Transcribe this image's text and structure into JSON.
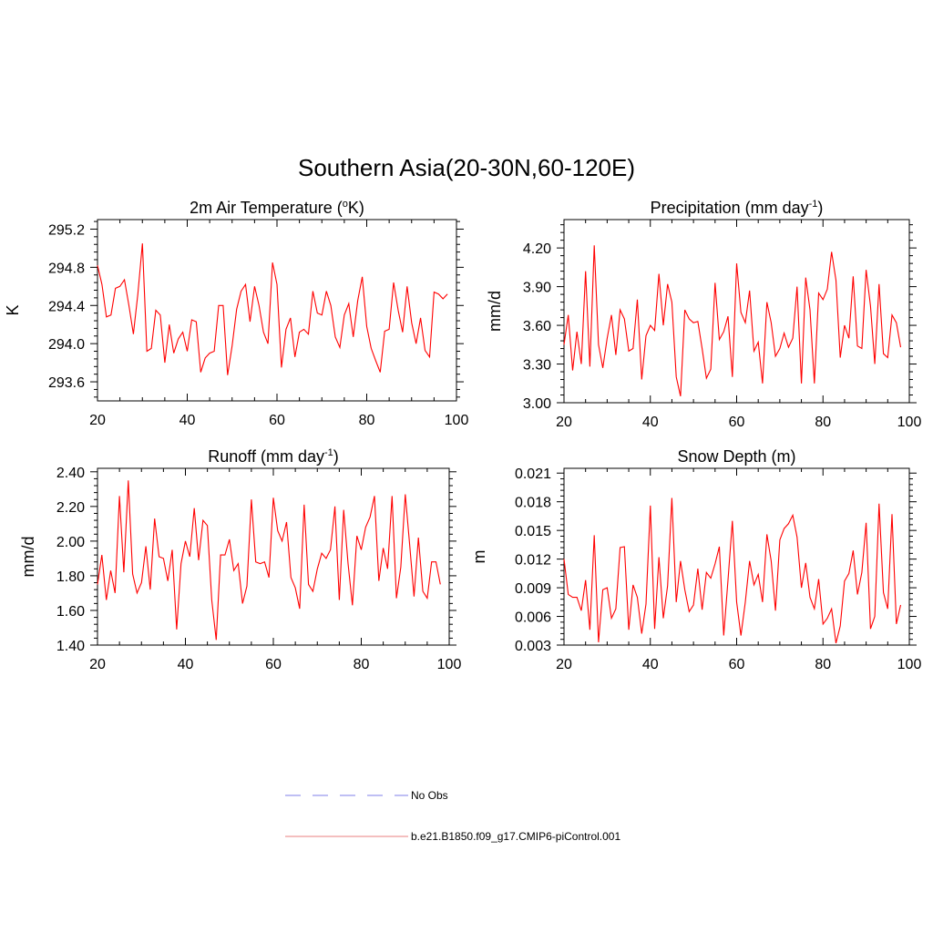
{
  "figure": {
    "title": "Southern Asia(20-30N,60-120E)"
  },
  "legend": {
    "entries": [
      {
        "label": "No Obs",
        "color": "#9999ee",
        "style": "dashed"
      },
      {
        "label": "b.e21.B1850.f09_g17.CMIP6-piControl.001",
        "color": "#ee9999",
        "style": "solid"
      }
    ]
  },
  "chart_data": [
    {
      "type": "line",
      "id": "temp",
      "title": "2m Air Temperature (",
      "title_sup": "o",
      "title_after": "K)",
      "ylabel": "K",
      "xlim": [
        20,
        100
      ],
      "ylim": [
        293.4,
        295.3
      ],
      "xticks": [
        "20",
        "40",
        "60",
        "80",
        "100"
      ],
      "yticks": [
        "293.6",
        "294.0",
        "294.4",
        "294.8",
        "295.2"
      ],
      "line_color": "#ff0000",
      "x": [
        20,
        21,
        22,
        23,
        24,
        25,
        26,
        27,
        28,
        29,
        30,
        31,
        32,
        33,
        34,
        35,
        36,
        37,
        38,
        39,
        40,
        41,
        42,
        43,
        44,
        45,
        46,
        47,
        48,
        49,
        50,
        51,
        52,
        53,
        54,
        55,
        56,
        57,
        58,
        59,
        60,
        61,
        62,
        63,
        64,
        65,
        66,
        67,
        68,
        69,
        70,
        71,
        72,
        73,
        74,
        75,
        76,
        77,
        78,
        79,
        80,
        81,
        82,
        83,
        84,
        85,
        86,
        87,
        88,
        89,
        90,
        91,
        92,
        93,
        94,
        95,
        96,
        97,
        98
      ],
      "values": [
        294.82,
        294.62,
        294.28,
        294.3,
        294.58,
        294.6,
        294.67,
        294.4,
        294.1,
        294.52,
        295.05,
        293.92,
        293.95,
        294.35,
        294.3,
        293.8,
        294.2,
        293.9,
        294.05,
        294.12,
        293.92,
        294.25,
        294.23,
        293.7,
        293.85,
        293.9,
        293.92,
        294.4,
        294.4,
        293.67,
        293.98,
        294.36,
        294.55,
        294.62,
        294.23,
        294.6,
        294.4,
        294.12,
        294.0,
        294.85,
        294.62,
        293.75,
        294.15,
        294.27,
        293.86,
        294.12,
        294.15,
        294.1,
        294.55,
        294.32,
        294.3,
        294.55,
        294.4,
        294.07,
        293.96,
        294.3,
        294.42,
        294.07,
        294.45,
        294.7,
        294.18,
        293.95,
        293.82,
        293.7,
        294.13,
        294.15,
        294.64,
        294.35,
        294.12,
        294.6,
        294.22,
        294.0,
        294.27,
        293.93,
        293.86,
        294.54,
        294.52,
        294.47,
        294.52
      ]
    },
    {
      "type": "line",
      "id": "precip",
      "title": "Precipitation (mm day",
      "title_sup": "-1",
      "title_after": ")",
      "ylabel": "mm/d",
      "xlim": [
        20,
        100
      ],
      "ylim": [
        3.0,
        4.42
      ],
      "xticks": [
        "20",
        "40",
        "60",
        "80",
        "100"
      ],
      "yticks": [
        "3.00",
        "3.30",
        "3.60",
        "3.90",
        "4.20"
      ],
      "line_color": "#ff0000",
      "x": [
        20,
        21,
        22,
        23,
        24,
        25,
        26,
        27,
        28,
        29,
        30,
        31,
        32,
        33,
        34,
        35,
        36,
        37,
        38,
        39,
        40,
        41,
        42,
        43,
        44,
        45,
        46,
        47,
        48,
        49,
        50,
        51,
        52,
        53,
        54,
        55,
        56,
        57,
        58,
        59,
        60,
        61,
        62,
        63,
        64,
        65,
        66,
        67,
        68,
        69,
        70,
        71,
        72,
        73,
        74,
        75,
        76,
        77,
        78,
        79,
        80,
        81,
        82,
        83,
        84,
        85,
        86,
        87,
        88,
        89,
        90,
        91,
        92,
        93,
        94,
        95,
        96,
        97,
        98
      ],
      "values": [
        3.45,
        3.68,
        3.25,
        3.55,
        3.3,
        4.02,
        3.28,
        4.22,
        3.45,
        3.27,
        3.5,
        3.68,
        3.37,
        3.72,
        3.65,
        3.4,
        3.42,
        3.8,
        3.18,
        3.52,
        3.6,
        3.56,
        4.0,
        3.6,
        3.92,
        3.78,
        3.2,
        3.05,
        3.72,
        3.65,
        3.62,
        3.63,
        3.42,
        3.19,
        3.26,
        3.93,
        3.49,
        3.55,
        3.67,
        3.2,
        4.08,
        3.7,
        3.62,
        3.87,
        3.4,
        3.47,
        3.15,
        3.78,
        3.62,
        3.36,
        3.42,
        3.54,
        3.43,
        3.5,
        3.9,
        3.15,
        3.97,
        3.72,
        3.15,
        3.85,
        3.8,
        3.88,
        4.17,
        3.95,
        3.35,
        3.6,
        3.5,
        3.98,
        3.44,
        3.42,
        4.03,
        3.75,
        3.3,
        3.92,
        3.38,
        3.35,
        3.68,
        3.62,
        3.43
      ]
    },
    {
      "type": "line",
      "id": "runoff",
      "title": "Runoff (mm day",
      "title_sup": "-1",
      "title_after": ")",
      "ylabel": "mm/d",
      "xlim": [
        20,
        100
      ],
      "ylim": [
        1.4,
        2.42
      ],
      "xticks": [
        "20",
        "40",
        "60",
        "80",
        "100"
      ],
      "yticks": [
        "1.40",
        "1.60",
        "1.80",
        "2.00",
        "2.20",
        "2.40"
      ],
      "line_color": "#ff0000",
      "x": [
        20,
        21,
        22,
        23,
        24,
        25,
        26,
        27,
        28,
        29,
        30,
        31,
        32,
        33,
        34,
        35,
        36,
        37,
        38,
        39,
        40,
        41,
        42,
        43,
        44,
        45,
        46,
        47,
        48,
        49,
        50,
        51,
        52,
        53,
        54,
        55,
        56,
        57,
        58,
        59,
        60,
        61,
        62,
        63,
        64,
        65,
        66,
        67,
        68,
        69,
        70,
        71,
        72,
        73,
        74,
        75,
        76,
        77,
        78,
        79,
        80,
        81,
        82,
        83,
        84,
        85,
        86,
        87,
        88,
        89,
        90,
        91,
        92,
        93,
        94,
        95,
        96,
        97,
        98
      ],
      "values": [
        1.75,
        1.92,
        1.66,
        1.83,
        1.7,
        2.26,
        1.82,
        2.35,
        1.81,
        1.7,
        1.76,
        1.97,
        1.72,
        2.13,
        1.91,
        1.9,
        1.77,
        1.95,
        1.49,
        1.87,
        2.0,
        1.91,
        2.19,
        1.89,
        2.12,
        2.09,
        1.66,
        1.43,
        1.92,
        1.92,
        2.01,
        1.83,
        1.87,
        1.64,
        1.74,
        2.24,
        1.88,
        1.87,
        1.88,
        1.79,
        2.25,
        2.06,
        2.0,
        2.11,
        1.79,
        1.73,
        1.61,
        2.21,
        1.75,
        1.71,
        1.84,
        1.93,
        1.9,
        1.95,
        2.2,
        1.66,
        2.18,
        1.87,
        1.63,
        2.03,
        1.95,
        2.08,
        2.14,
        2.26,
        1.77,
        1.96,
        1.84,
        2.26,
        1.67,
        1.85,
        2.27,
        1.98,
        1.68,
        2.02,
        1.71,
        1.67,
        1.88,
        1.88,
        1.75
      ]
    },
    {
      "type": "line",
      "id": "snow",
      "title": "Snow Depth (m)",
      "title_sup": "",
      "title_after": "",
      "ylabel": "m",
      "xlim": [
        20,
        100
      ],
      "ylim": [
        0.003,
        0.0215
      ],
      "xticks": [
        "20",
        "40",
        "60",
        "80",
        "100"
      ],
      "yticks": [
        "0.003",
        "0.006",
        "0.009",
        "0.012",
        "0.015",
        "0.018",
        "0.021"
      ],
      "line_color": "#ff0000",
      "x": [
        20,
        21,
        22,
        23,
        24,
        25,
        26,
        27,
        28,
        29,
        30,
        31,
        32,
        33,
        34,
        35,
        36,
        37,
        38,
        39,
        40,
        41,
        42,
        43,
        44,
        45,
        46,
        47,
        48,
        49,
        50,
        51,
        52,
        53,
        54,
        55,
        56,
        57,
        58,
        59,
        60,
        61,
        62,
        63,
        64,
        65,
        66,
        67,
        68,
        69,
        70,
        71,
        72,
        73,
        74,
        75,
        76,
        77,
        78,
        79,
        80,
        81,
        82,
        83,
        84,
        85,
        86,
        87,
        88,
        89,
        90,
        91,
        92,
        93,
        94,
        95,
        96,
        97,
        98
      ],
      "values": [
        0.012,
        0.0083,
        0.008,
        0.008,
        0.0066,
        0.0098,
        0.0046,
        0.0145,
        0.0033,
        0.0088,
        0.009,
        0.0058,
        0.0068,
        0.0132,
        0.0133,
        0.0046,
        0.0093,
        0.008,
        0.0042,
        0.0073,
        0.0176,
        0.0047,
        0.0122,
        0.0058,
        0.0092,
        0.0184,
        0.0075,
        0.0118,
        0.0088,
        0.0065,
        0.0072,
        0.011,
        0.0067,
        0.0106,
        0.01,
        0.0115,
        0.0133,
        0.004,
        0.0098,
        0.016,
        0.0075,
        0.004,
        0.0075,
        0.0118,
        0.0093,
        0.0104,
        0.0075,
        0.0146,
        0.0118,
        0.0066,
        0.014,
        0.0152,
        0.0157,
        0.0166,
        0.0143,
        0.009,
        0.0116,
        0.008,
        0.0068,
        0.0099,
        0.0052,
        0.0058,
        0.0068,
        0.0032,
        0.005,
        0.0097,
        0.0105,
        0.0129,
        0.0083,
        0.0106,
        0.0158,
        0.0047,
        0.006,
        0.0178,
        0.0085,
        0.0068,
        0.0167,
        0.0052,
        0.0072
      ]
    }
  ]
}
